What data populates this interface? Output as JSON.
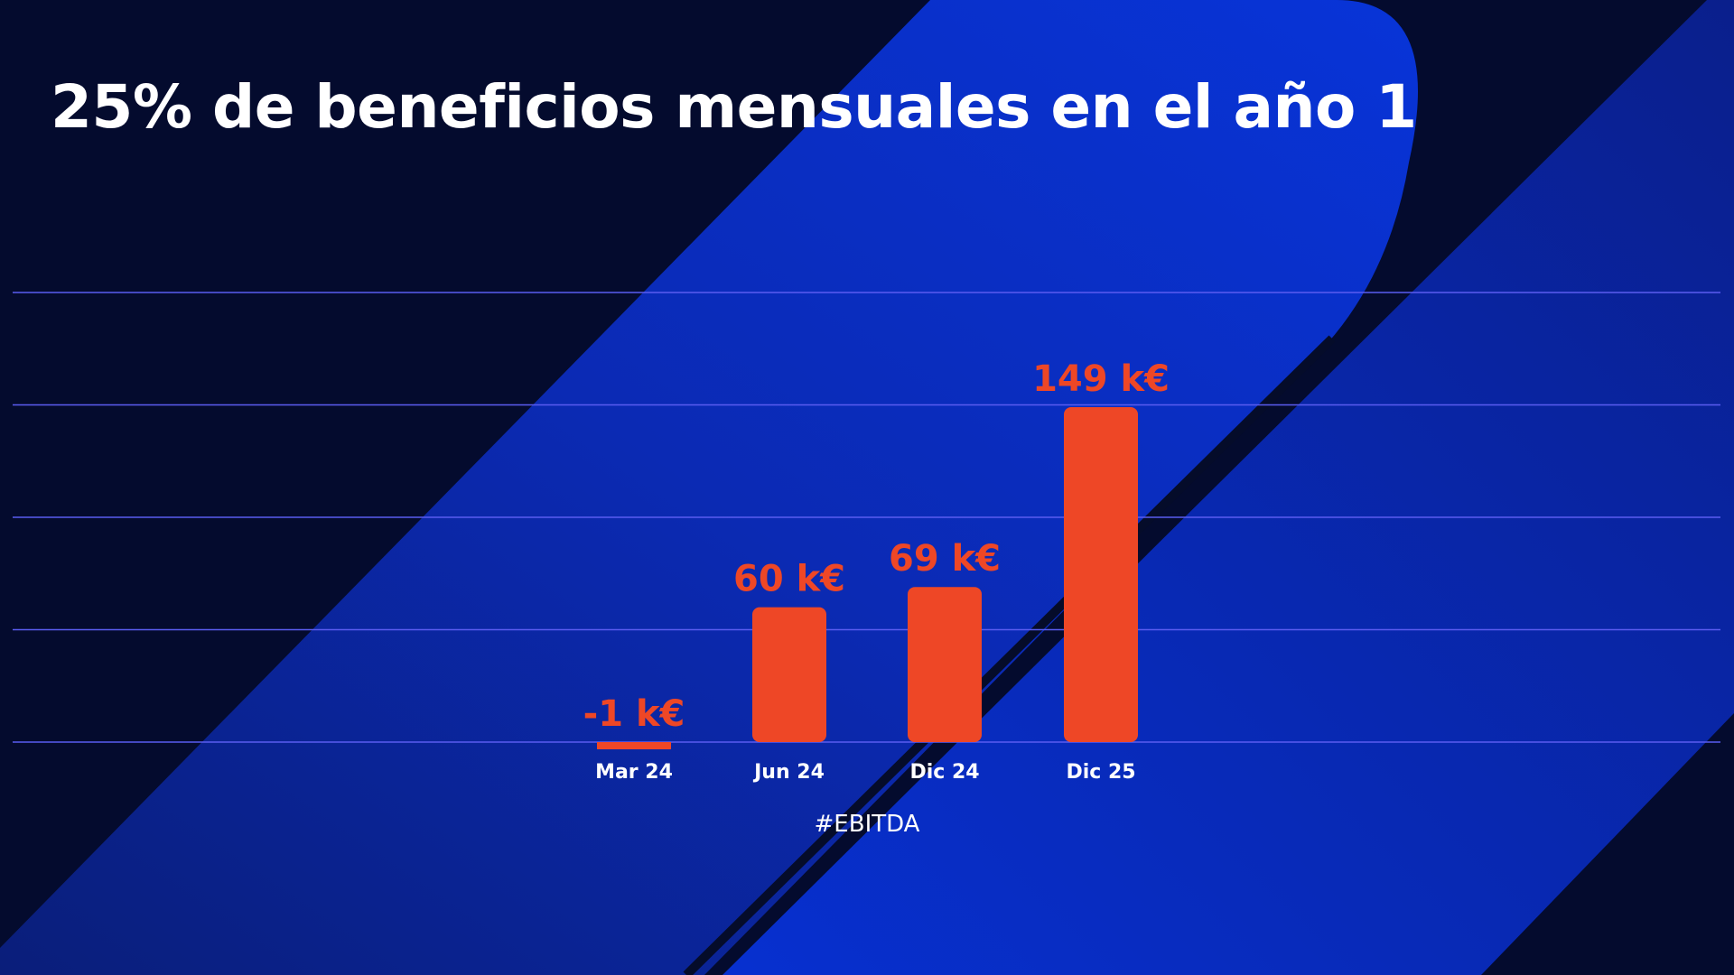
{
  "slide": {
    "title": "25% de beneficios mensuales en el año 1",
    "caption": "#EBITDA"
  },
  "colors": {
    "background": "#040b2e",
    "accent_blue": "#0a2fc8",
    "bar": "#ee4726",
    "data_label": "#ee4726",
    "gridline": "#5a5cf0",
    "text": "#ffffff"
  },
  "chart_data": {
    "type": "bar",
    "categories": [
      "Mar 24",
      "Jun 24",
      "Dic 24",
      "Dic 25"
    ],
    "values": [
      -1,
      60,
      69,
      149
    ],
    "data_labels": [
      "-1 k€",
      "60 k€",
      "69 k€",
      "149 k€"
    ],
    "ylim": [
      0,
      200
    ],
    "gridlines": [
      0,
      50,
      100,
      150,
      200
    ],
    "grid": true,
    "legend": "none"
  }
}
